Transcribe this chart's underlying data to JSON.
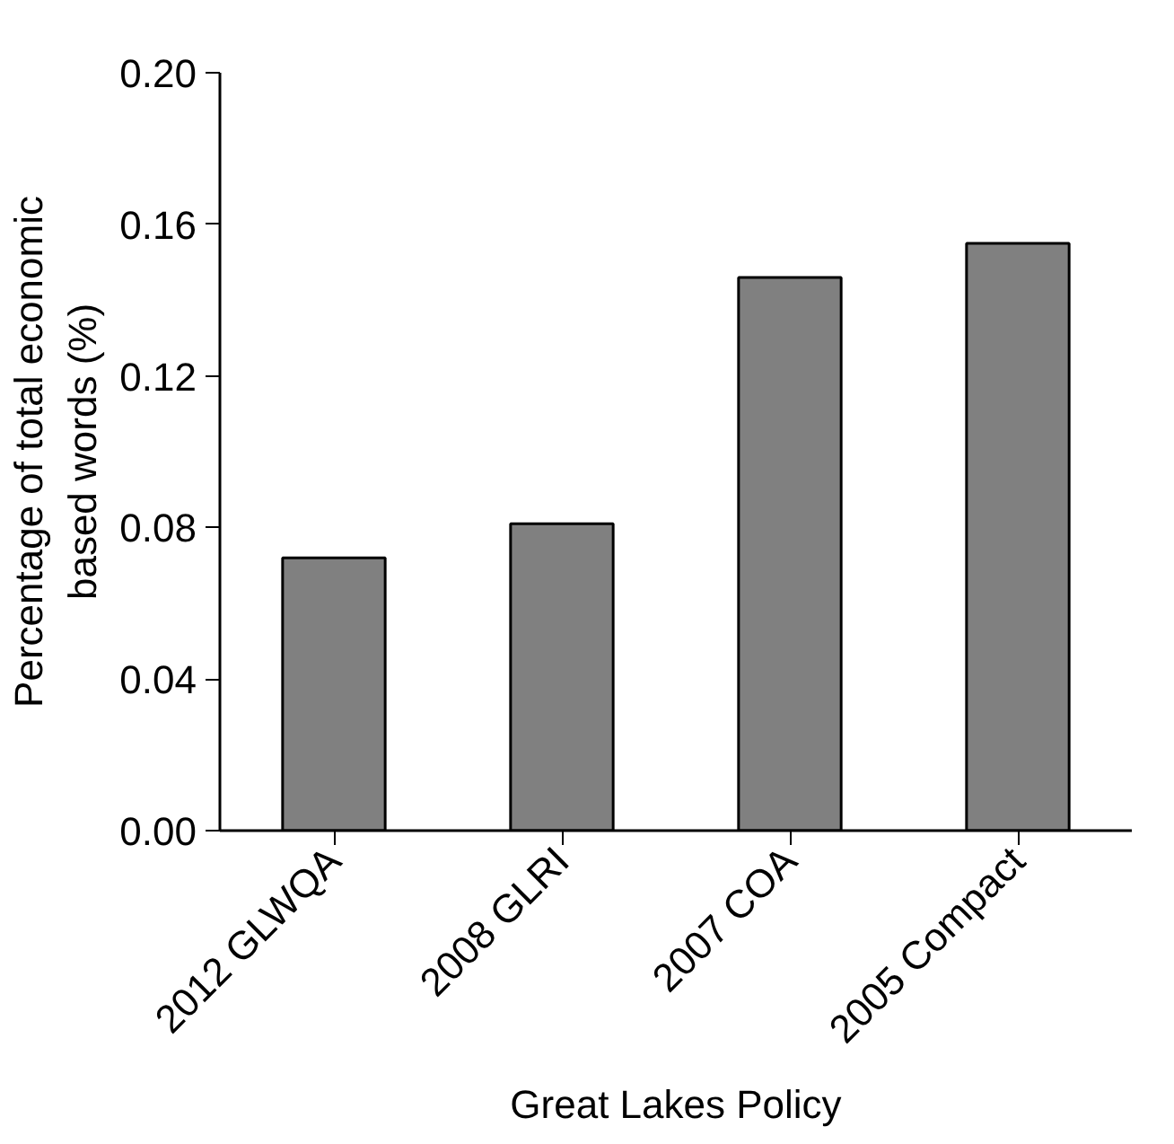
{
  "chart_data": {
    "type": "bar",
    "xlabel": "Great Lakes Policy",
    "ylabel": "Percentage of total economic\nbased words (%)",
    "categories": [
      "2012 GLWQA",
      "2008 GLRI",
      "2007 COA",
      "2005 Compact"
    ],
    "values": [
      0.072,
      0.081,
      0.146,
      0.155
    ],
    "color": "#808080",
    "ylim": [
      0,
      0.2
    ],
    "yticks": [
      {
        "value": 0,
        "label": "0.00"
      },
      {
        "value": 0.04,
        "label": "0.04"
      },
      {
        "value": 0.08,
        "label": "0.08"
      },
      {
        "value": 0.12,
        "label": "0.12"
      },
      {
        "value": 0.16,
        "label": "0.16"
      },
      {
        "value": 0.2,
        "label": "0.20"
      }
    ],
    "grid": false
  }
}
